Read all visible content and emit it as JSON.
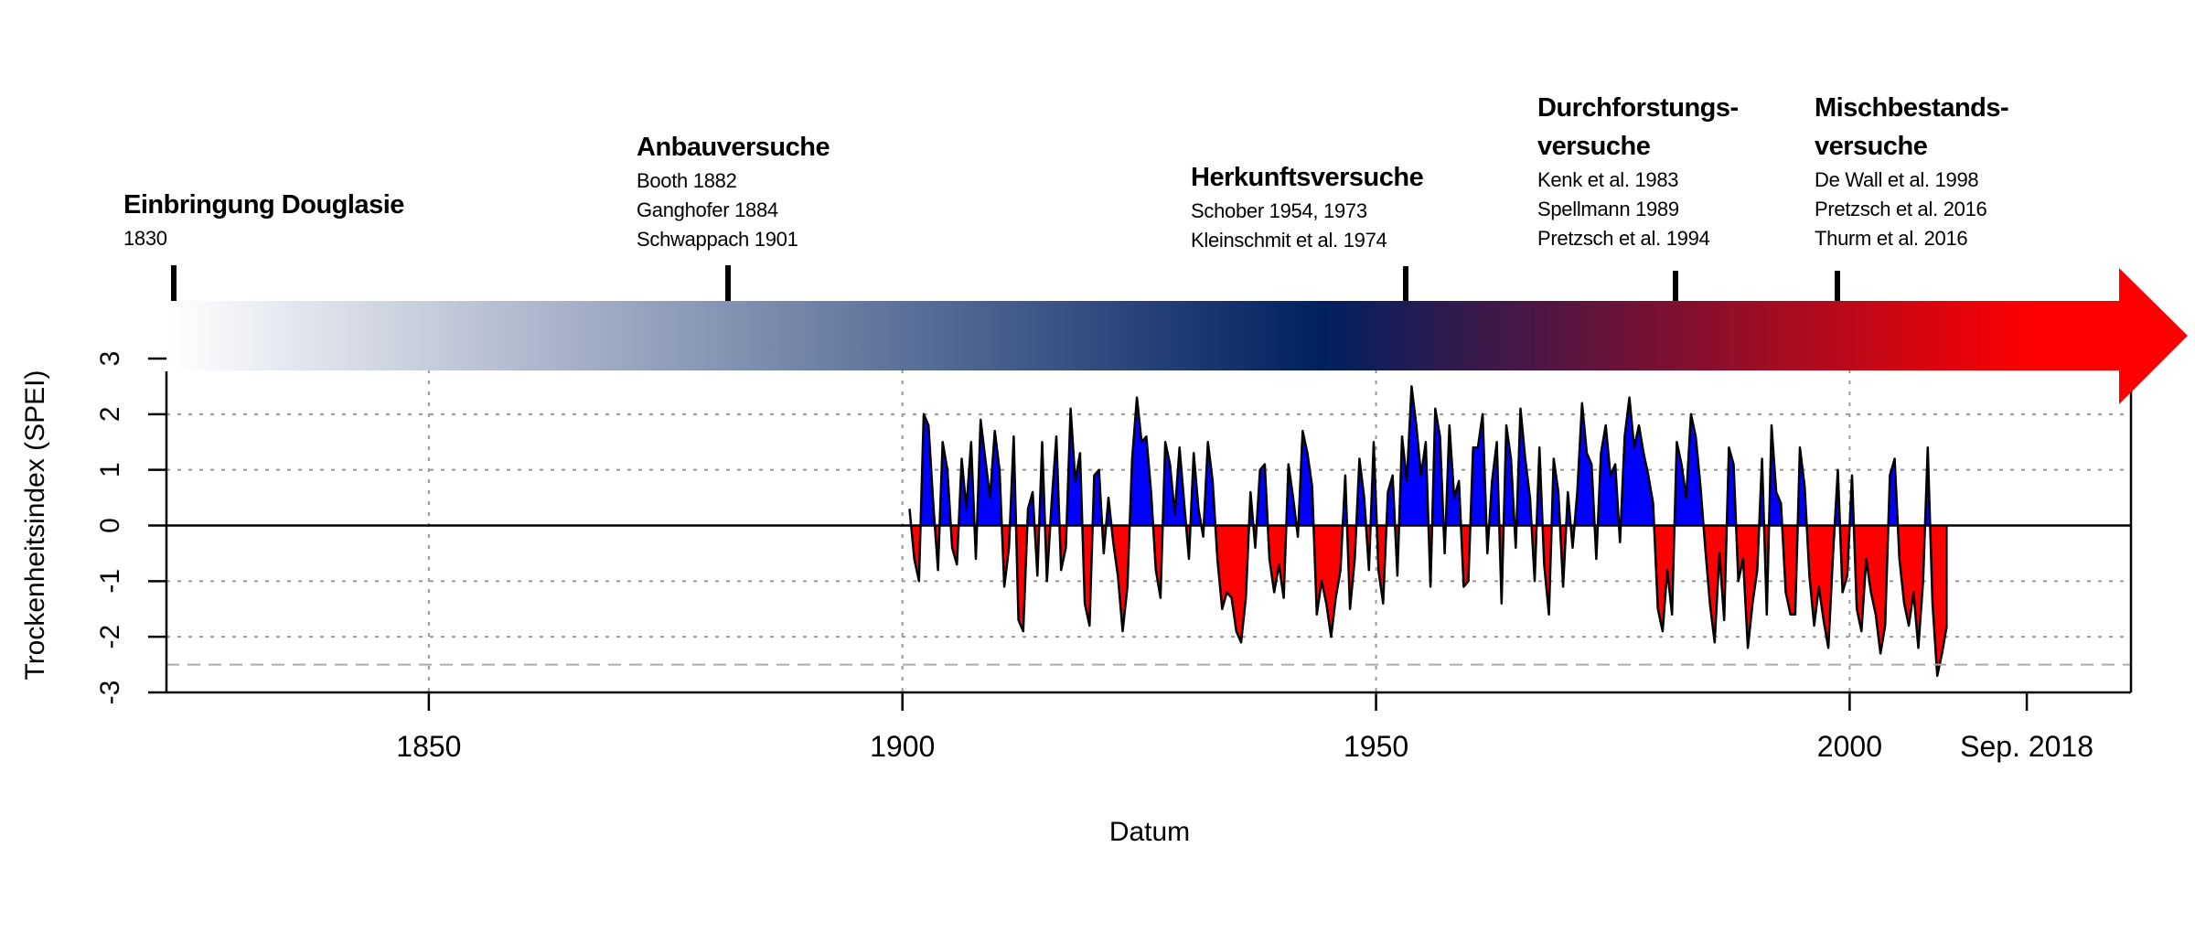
{
  "chart_data": {
    "type": "area",
    "title": "",
    "xlabel": "Datum",
    "ylabel": "Trockenheitsindex (SPEI)",
    "xlim": [
      1822.3,
      2029.7
    ],
    "ylim": [
      -3,
      3
    ],
    "grid": true,
    "threshold_line": -2.5,
    "x_ticks": [
      {
        "value": 1850,
        "label": "1850"
      },
      {
        "value": 1900,
        "label": "1900"
      },
      {
        "value": 1950,
        "label": "1950"
      },
      {
        "value": 2000,
        "label": "2000"
      },
      {
        "value": 2018.7,
        "label": "Sep. 2018"
      }
    ],
    "y_ticks": [
      {
        "value": 3,
        "label": "3"
      },
      {
        "value": 2,
        "label": "2"
      },
      {
        "value": 1,
        "label": "1"
      },
      {
        "value": 0,
        "label": "0"
      },
      {
        "value": -1,
        "label": "-1"
      },
      {
        "value": -2,
        "label": "-2"
      },
      {
        "value": -3,
        "label": "-3"
      }
    ],
    "colors": {
      "positive": "#0000FF",
      "negative": "#FF0000",
      "outline": "#000000",
      "grid": "#999999"
    },
    "series": [
      {
        "name": "SPEI",
        "x_start": 1900.75,
        "x_step": 0.5,
        "values": [
          0.3,
          -0.6,
          -1.0,
          2.0,
          1.8,
          0.4,
          -0.8,
          1.5,
          1.0,
          -0.4,
          -0.7,
          1.2,
          0.3,
          1.5,
          -0.6,
          1.9,
          1.2,
          0.5,
          1.7,
          1.0,
          -1.1,
          -0.4,
          1.6,
          -1.7,
          -1.9,
          0.3,
          0.6,
          -0.9,
          1.5,
          -1.0,
          0.4,
          1.6,
          -0.8,
          -0.4,
          2.1,
          0.8,
          1.3,
          -1.4,
          -1.8,
          0.9,
          1.0,
          -0.5,
          0.5,
          -0.3,
          -0.9,
          -1.9,
          -1.1,
          1.2,
          2.3,
          1.5,
          1.6,
          0.6,
          -0.8,
          -1.3,
          1.5,
          1.1,
          0.2,
          1.4,
          0.4,
          -0.6,
          1.3,
          0.3,
          -0.2,
          1.5,
          0.8,
          -0.6,
          -1.5,
          -1.2,
          -1.3,
          -1.9,
          -2.1,
          -1.3,
          0.6,
          -0.4,
          1.0,
          1.1,
          -0.6,
          -1.2,
          -0.7,
          -1.3,
          1.1,
          0.5,
          -0.2,
          1.7,
          1.3,
          0.7,
          -1.6,
          -1.0,
          -1.4,
          -2.0,
          -1.3,
          -0.8,
          0.9,
          -1.5,
          -0.6,
          1.2,
          0.5,
          -0.8,
          1.5,
          -0.8,
          -1.4,
          0.6,
          0.9,
          -0.9,
          1.6,
          0.8,
          2.5,
          1.8,
          0.9,
          1.5,
          -1.1,
          2.1,
          1.6,
          -0.5,
          1.8,
          0.5,
          0.8,
          -1.1,
          -1.0,
          1.4,
          1.4,
          2.0,
          -0.5,
          0.8,
          1.5,
          -1.4,
          1.8,
          1.2,
          -0.4,
          2.1,
          1.2,
          0.5,
          -1.0,
          1.4,
          -0.7,
          -1.6,
          1.2,
          0.6,
          -1.1,
          0.6,
          -0.4,
          0.6,
          2.2,
          1.3,
          1.1,
          -0.6,
          1.3,
          1.8,
          0.9,
          1.1,
          -0.3,
          1.6,
          2.3,
          1.4,
          1.8,
          1.3,
          0.9,
          0.4,
          -1.5,
          -1.9,
          -0.8,
          -1.6,
          1.5,
          1.1,
          0.5,
          2.0,
          1.6,
          0.7,
          -0.4,
          -1.4,
          -2.1,
          -0.5,
          -1.7,
          1.4,
          1.1,
          -1.0,
          -0.6,
          -2.2,
          -1.4,
          -0.8,
          1.2,
          -1.6,
          1.8,
          0.6,
          0.4,
          -1.2,
          -1.6,
          -1.6,
          1.4,
          0.7,
          -0.9,
          -1.8,
          -1.1,
          -1.7,
          -2.2,
          -0.5,
          1.0,
          -1.2,
          -0.9,
          0.9,
          -1.5,
          -1.9,
          -0.6,
          -1.2,
          -1.6,
          -2.3,
          -1.8,
          0.9,
          1.2,
          -0.6,
          -1.4,
          -1.8,
          -1.2,
          -2.2,
          -1.0,
          1.4,
          -1.4,
          -2.7,
          -2.3,
          -1.8
        ]
      }
    ]
  },
  "timeline": {
    "gradient_colors": {
      "start": "#FFFFFF",
      "middle": "#002060",
      "end": "#FF0000"
    },
    "events": [
      {
        "title": "Einbringung Douglasie",
        "lines": [
          "1830"
        ]
      },
      {
        "title": "Anbauversuche",
        "lines": [
          "Booth 1882",
          "Ganghofer 1884",
          "Schwappach 1901"
        ]
      },
      {
        "title": "Herkunftsversuche",
        "lines": [
          "Schober 1954, 1973",
          "Kleinschmit et al. 1974"
        ]
      },
      {
        "title": "Durchforstungs-",
        "title2": "versuche",
        "lines": [
          "Kenk et al. 1983",
          "Spellmann 1989",
          "Pretzsch et al. 1994"
        ]
      },
      {
        "title": "Mischbestands-",
        "title2": "versuche",
        "lines": [
          "De Wall et al. 1998",
          "Pretzsch et al.  2016",
          "Thurm et al. 2016"
        ]
      }
    ]
  }
}
